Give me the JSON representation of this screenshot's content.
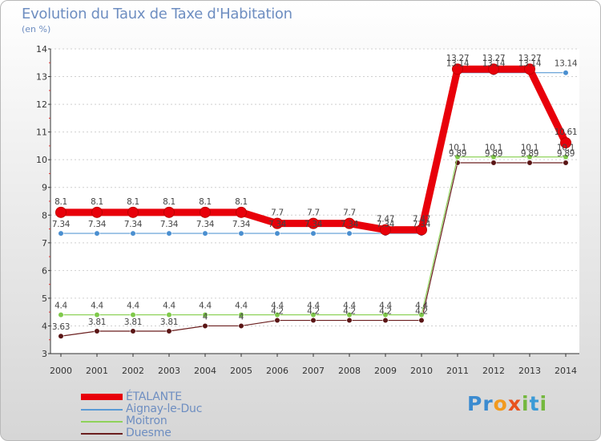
{
  "chart_data": {
    "type": "line",
    "title": "Evolution du Taux de Taxe d'Habitation",
    "subtitle": "(en %)",
    "ylabel": "",
    "xlabel": "",
    "ylim": [
      3,
      14
    ],
    "yticks": [
      3,
      4,
      5,
      6,
      7,
      8,
      9,
      10,
      11,
      12,
      13,
      14
    ],
    "categories": [
      "2000",
      "2001",
      "2002",
      "2003",
      "2004",
      "2005",
      "2006",
      "2007",
      "2008",
      "2009",
      "2010",
      "2011",
      "2012",
      "2013",
      "2014"
    ],
    "series": [
      {
        "name": "ÉTALANTE",
        "color": "#e8000a",
        "values": [
          8.1,
          8.1,
          8.1,
          8.1,
          8.1,
          8.1,
          7.7,
          7.7,
          7.7,
          7.47,
          7.47,
          13.27,
          13.27,
          13.27,
          10.61
        ],
        "labels": [
          "8.1",
          "8.1",
          "8.1",
          "8.1",
          "8.1",
          "8.1",
          "7.7",
          "7.7",
          "7.7",
          "7.47",
          "7.47",
          "13.27",
          "13.27",
          "13.27",
          "10.61"
        ]
      },
      {
        "name": "Aignay-le-Duc",
        "color": "#5a9bd5",
        "values": [
          7.34,
          7.34,
          7.34,
          7.34,
          7.34,
          7.34,
          7.34,
          7.34,
          7.34,
          7.34,
          7.34,
          13.14,
          13.14,
          13.14,
          13.14
        ],
        "labels": [
          "7.34",
          "7.34",
          "7.34",
          "7.34",
          "7.34",
          "7.34",
          "7.34",
          "7.34",
          "7.34",
          "7.34",
          "7.34",
          "13.14",
          "13.14",
          "13.14",
          "13.14"
        ]
      },
      {
        "name": "Moitron",
        "color": "#8fd25a",
        "values": [
          4.4,
          4.4,
          4.4,
          4.4,
          4.4,
          4.4,
          4.4,
          4.4,
          4.4,
          4.4,
          4.4,
          10.1,
          10.1,
          10.1,
          10.1
        ],
        "labels": [
          "4.4",
          "4.4",
          "4.4",
          "4.4",
          "4.4",
          "4.4",
          "4.4",
          "4.4",
          "4.4",
          "4.4",
          "4.4",
          "10.1",
          "10.1",
          "10.1",
          "10.1"
        ]
      },
      {
        "name": "Duesme",
        "color": "#6b1f1f",
        "values": [
          3.63,
          3.81,
          3.81,
          3.81,
          4,
          4,
          4.2,
          4.2,
          4.2,
          4.2,
          4.2,
          9.89,
          9.89,
          9.89,
          9.89
        ],
        "labels": [
          "3.63",
          "3.81",
          "3.81",
          "3.81",
          "4",
          "4",
          "4.2",
          "4.2",
          "4.2",
          "4.2",
          "4.2",
          "9.89",
          "9.89",
          "9.89",
          "9.89"
        ]
      }
    ]
  },
  "logo": {
    "p1": "Pr",
    "o": "o",
    "x": "x",
    "i": "i",
    "t": "t",
    "i2": "i"
  }
}
